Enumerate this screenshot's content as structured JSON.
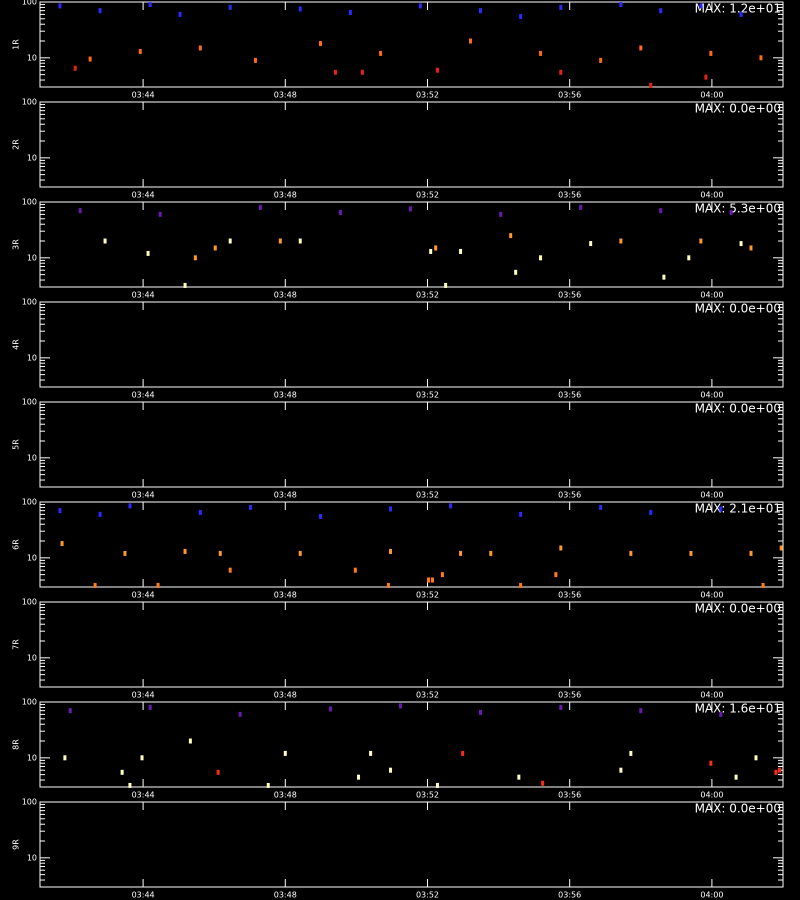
{
  "chart_data": [
    {
      "type": "scatter",
      "ylabel": "1R",
      "annotation": "MAX: 1.2e+01",
      "log_y": true,
      "xlim": [
        221.1,
        242.0
      ],
      "xticks": [
        {
          "value": 224,
          "label": "03:44"
        },
        {
          "value": 228,
          "label": "03:48"
        },
        {
          "value": 232,
          "label": "03:52"
        },
        {
          "value": 236,
          "label": "03:56"
        },
        {
          "value": 240,
          "label": "04:00"
        }
      ],
      "ylim": [
        3,
        100
      ],
      "yticks": [
        10,
        100
      ],
      "yminorticks": [
        3,
        4,
        5,
        6,
        7,
        8,
        9,
        20,
        30,
        40,
        50,
        60,
        70,
        80,
        90
      ],
      "series": [
        {
          "color": "#2a2aff",
          "x": [
            221.66,
            222.79,
            224.2,
            225.04,
            226.45,
            228.42,
            229.83,
            231.8,
            233.49,
            234.62,
            235.75,
            237.44,
            238.56,
            239.69,
            240.82
          ],
          "values": [
            85,
            70,
            90,
            60,
            80,
            75,
            65,
            85,
            70,
            55,
            80,
            90,
            70,
            85,
            60
          ]
        },
        {
          "color": "#ff6a1a",
          "x": [
            222.51,
            223.92,
            225.61,
            227.16,
            228.99,
            230.68,
            233.21,
            235.18,
            236.87,
            238.0,
            239.97,
            241.38
          ],
          "values": [
            9.5,
            13,
            15,
            9,
            18,
            12,
            20,
            12,
            9,
            15,
            12,
            10
          ]
        },
        {
          "color": "#e8201a",
          "x": [
            222.09,
            229.41,
            230.17,
            232.28,
            235.75,
            238.28,
            239.83
          ],
          "values": [
            6.5,
            5.5,
            5.5,
            6,
            5.5,
            3.2,
            4.5
          ]
        }
      ]
    },
    {
      "type": "scatter",
      "ylabel": "2R",
      "annotation": "MAX: 0.0e+00",
      "log_y": true,
      "xlim": [
        221.1,
        242.0
      ],
      "xticks": [
        {
          "value": 224,
          "label": "03:44"
        },
        {
          "value": 228,
          "label": "03:48"
        },
        {
          "value": 232,
          "label": "03:52"
        },
        {
          "value": 236,
          "label": "03:56"
        },
        {
          "value": 240,
          "label": "04:00"
        }
      ],
      "ylim": [
        3,
        100
      ],
      "yticks": [
        10,
        100
      ],
      "yminorticks": [
        3,
        4,
        5,
        6,
        7,
        8,
        9,
        20,
        30,
        40,
        50,
        60,
        70,
        80,
        90
      ],
      "series": []
    },
    {
      "type": "scatter",
      "ylabel": "3R",
      "annotation": "MAX: 5.3e+00",
      "log_y": true,
      "xlim": [
        221.1,
        242.0
      ],
      "xticks": [
        {
          "value": 224,
          "label": "03:44"
        },
        {
          "value": 228,
          "label": "03:48"
        },
        {
          "value": 232,
          "label": "03:52"
        },
        {
          "value": 236,
          "label": "03:56"
        },
        {
          "value": 240,
          "label": "04:00"
        }
      ],
      "ylim": [
        3,
        100
      ],
      "yticks": [
        10,
        100
      ],
      "yminorticks": [
        3,
        4,
        5,
        6,
        7,
        8,
        9,
        20,
        30,
        40,
        50,
        60,
        70,
        80,
        90
      ],
      "series": [
        {
          "color": "#6a1ab0",
          "x": [
            222.23,
            224.48,
            227.3,
            229.55,
            231.52,
            234.06,
            236.31,
            238.56,
            240.54
          ],
          "values": [
            70,
            60,
            80,
            65,
            75,
            60,
            80,
            70,
            65
          ]
        },
        {
          "color": "#ff9a2a",
          "x": [
            225.47,
            226.03,
            227.86,
            232.23,
            234.34,
            237.44,
            239.69,
            241.1
          ],
          "values": [
            10,
            15,
            20,
            15,
            25,
            20,
            20,
            15
          ]
        },
        {
          "color": "#ffffc0",
          "x": [
            222.93,
            224.14,
            225.18,
            226.45,
            228.42,
            232.09,
            232.51,
            232.93,
            234.48,
            235.18,
            236.59,
            238.65,
            239.35,
            240.82
          ],
          "values": [
            20,
            12,
            3.2,
            20,
            20,
            13,
            3.2,
            13,
            5.5,
            10,
            18,
            4.5,
            10,
            18
          ]
        }
      ]
    },
    {
      "type": "scatter",
      "ylabel": "4R",
      "annotation": "MAX: 0.0e+00",
      "log_y": true,
      "xlim": [
        221.1,
        242.0
      ],
      "xticks": [
        {
          "value": 224,
          "label": "03:44"
        },
        {
          "value": 228,
          "label": "03:48"
        },
        {
          "value": 232,
          "label": "03:52"
        },
        {
          "value": 236,
          "label": "03:56"
        },
        {
          "value": 240,
          "label": "04:00"
        }
      ],
      "ylim": [
        3,
        100
      ],
      "yticks": [
        10,
        100
      ],
      "yminorticks": [
        3,
        4,
        5,
        6,
        7,
        8,
        9,
        20,
        30,
        40,
        50,
        60,
        70,
        80,
        90
      ],
      "series": []
    },
    {
      "type": "scatter",
      "ylabel": "5R",
      "annotation": "MAX: 0.0e+00",
      "log_y": true,
      "xlim": [
        221.1,
        242.0
      ],
      "xticks": [
        {
          "value": 224,
          "label": "03:44"
        },
        {
          "value": 228,
          "label": "03:48"
        },
        {
          "value": 232,
          "label": "03:52"
        },
        {
          "value": 236,
          "label": "03:56"
        },
        {
          "value": 240,
          "label": "04:00"
        }
      ],
      "ylim": [
        3,
        100
      ],
      "yticks": [
        10,
        100
      ],
      "yminorticks": [
        3,
        4,
        5,
        6,
        7,
        8,
        9,
        20,
        30,
        40,
        50,
        60,
        70,
        80,
        90
      ],
      "series": []
    },
    {
      "type": "scatter",
      "ylabel": "6R",
      "annotation": "MAX: 2.1e+01",
      "log_y": true,
      "xlim": [
        221.1,
        242.0
      ],
      "xticks": [
        {
          "value": 224,
          "label": "03:44"
        },
        {
          "value": 228,
          "label": "03:48"
        },
        {
          "value": 232,
          "label": "03:52"
        },
        {
          "value": 236,
          "label": "03:56"
        },
        {
          "value": 240,
          "label": "04:00"
        }
      ],
      "ylim": [
        3,
        100
      ],
      "yticks": [
        10,
        100
      ],
      "yminorticks": [
        3,
        4,
        5,
        6,
        7,
        8,
        9,
        20,
        30,
        40,
        50,
        60,
        70,
        80,
        90
      ],
      "series": [
        {
          "color": "#2a2aff",
          "x": [
            221.66,
            222.79,
            223.63,
            225.61,
            227.02,
            228.99,
            230.96,
            232.65,
            234.62,
            236.87,
            238.28,
            240.25
          ],
          "values": [
            70,
            60,
            85,
            65,
            80,
            55,
            75,
            85,
            60,
            80,
            65,
            75
          ]
        },
        {
          "color": "#ff9a2a",
          "x": [
            221.72,
            223.49,
            225.18,
            226.17,
            228.42,
            230.96,
            232.93,
            233.78,
            235.75,
            237.72,
            239.41,
            241.1,
            241.95
          ],
          "values": [
            18,
            12,
            13,
            12,
            12,
            13,
            12,
            12,
            15,
            12,
            12,
            12,
            15
          ]
        },
        {
          "color": "#ff7a1a",
          "x": [
            222.65,
            224.42,
            226.45,
            229.97,
            230.9,
            232.03,
            232.14,
            232.42,
            234.62,
            235.61,
            241.44
          ],
          "values": [
            3.2,
            3.2,
            6,
            6,
            3.2,
            4,
            4,
            5,
            3.2,
            5,
            3.2
          ]
        }
      ]
    },
    {
      "type": "scatter",
      "ylabel": "7R",
      "annotation": "MAX: 0.0e+00",
      "log_y": true,
      "xlim": [
        221.1,
        242.0
      ],
      "xticks": [
        {
          "value": 224,
          "label": "03:44"
        },
        {
          "value": 228,
          "label": "03:48"
        },
        {
          "value": 232,
          "label": "03:52"
        },
        {
          "value": 236,
          "label": "03:56"
        },
        {
          "value": 240,
          "label": "04:00"
        }
      ],
      "ylim": [
        3,
        100
      ],
      "yticks": [
        10,
        100
      ],
      "yminorticks": [
        3,
        4,
        5,
        6,
        7,
        8,
        9,
        20,
        30,
        40,
        50,
        60,
        70,
        80,
        90
      ],
      "series": []
    },
    {
      "type": "scatter",
      "ylabel": "8R",
      "annotation": "MAX: 1.6e+01",
      "log_y": true,
      "xlim": [
        221.1,
        242.0
      ],
      "xticks": [
        {
          "value": 224,
          "label": "03:44"
        },
        {
          "value": 228,
          "label": "03:48"
        },
        {
          "value": 232,
          "label": "03:52"
        },
        {
          "value": 236,
          "label": "03:56"
        },
        {
          "value": 240,
          "label": "04:00"
        }
      ],
      "ylim": [
        3,
        100
      ],
      "yticks": [
        10,
        100
      ],
      "yminorticks": [
        3,
        4,
        5,
        6,
        7,
        8,
        9,
        20,
        30,
        40,
        50,
        60,
        70,
        80,
        90
      ],
      "series": [
        {
          "color": "#6a1ab0",
          "x": [
            221.95,
            224.2,
            226.73,
            229.27,
            231.24,
            233.49,
            235.75,
            238.0,
            240.25
          ],
          "values": [
            70,
            80,
            60,
            75,
            85,
            65,
            80,
            70,
            60
          ]
        },
        {
          "color": "#ffffc0",
          "x": [
            221.8,
            223.41,
            223.63,
            223.97,
            225.33,
            227.52,
            228.0,
            230.06,
            230.4,
            230.96,
            232.28,
            234.57,
            237.44,
            237.72,
            240.68,
            241.24
          ],
          "values": [
            10,
            5.5,
            3.2,
            10,
            20,
            3.2,
            12,
            4.5,
            12,
            6,
            3.2,
            4.5,
            6,
            12,
            4.5,
            10
          ]
        },
        {
          "color": "#ff2a1a",
          "x": [
            226.11,
            232.99,
            235.24,
            239.97,
            241.8,
            241.9
          ],
          "values": [
            5.5,
            12,
            3.5,
            8,
            5.5,
            6
          ]
        }
      ]
    },
    {
      "type": "scatter",
      "ylabel": "9R",
      "annotation": "MAX: 0.0e+00",
      "log_y": true,
      "xlim": [
        221.1,
        242.0
      ],
      "xticks": [
        {
          "value": 224,
          "label": "03:44"
        },
        {
          "value": 228,
          "label": "03:48"
        },
        {
          "value": 232,
          "label": "03:52"
        },
        {
          "value": 236,
          "label": "03:56"
        },
        {
          "value": 240,
          "label": "04:00"
        }
      ],
      "ylim": [
        3,
        100
      ],
      "yticks": [
        10,
        100
      ],
      "yminorticks": [
        3,
        4,
        5,
        6,
        7,
        8,
        9,
        20,
        30,
        40,
        50,
        60,
        70,
        80,
        90
      ],
      "series": []
    }
  ]
}
